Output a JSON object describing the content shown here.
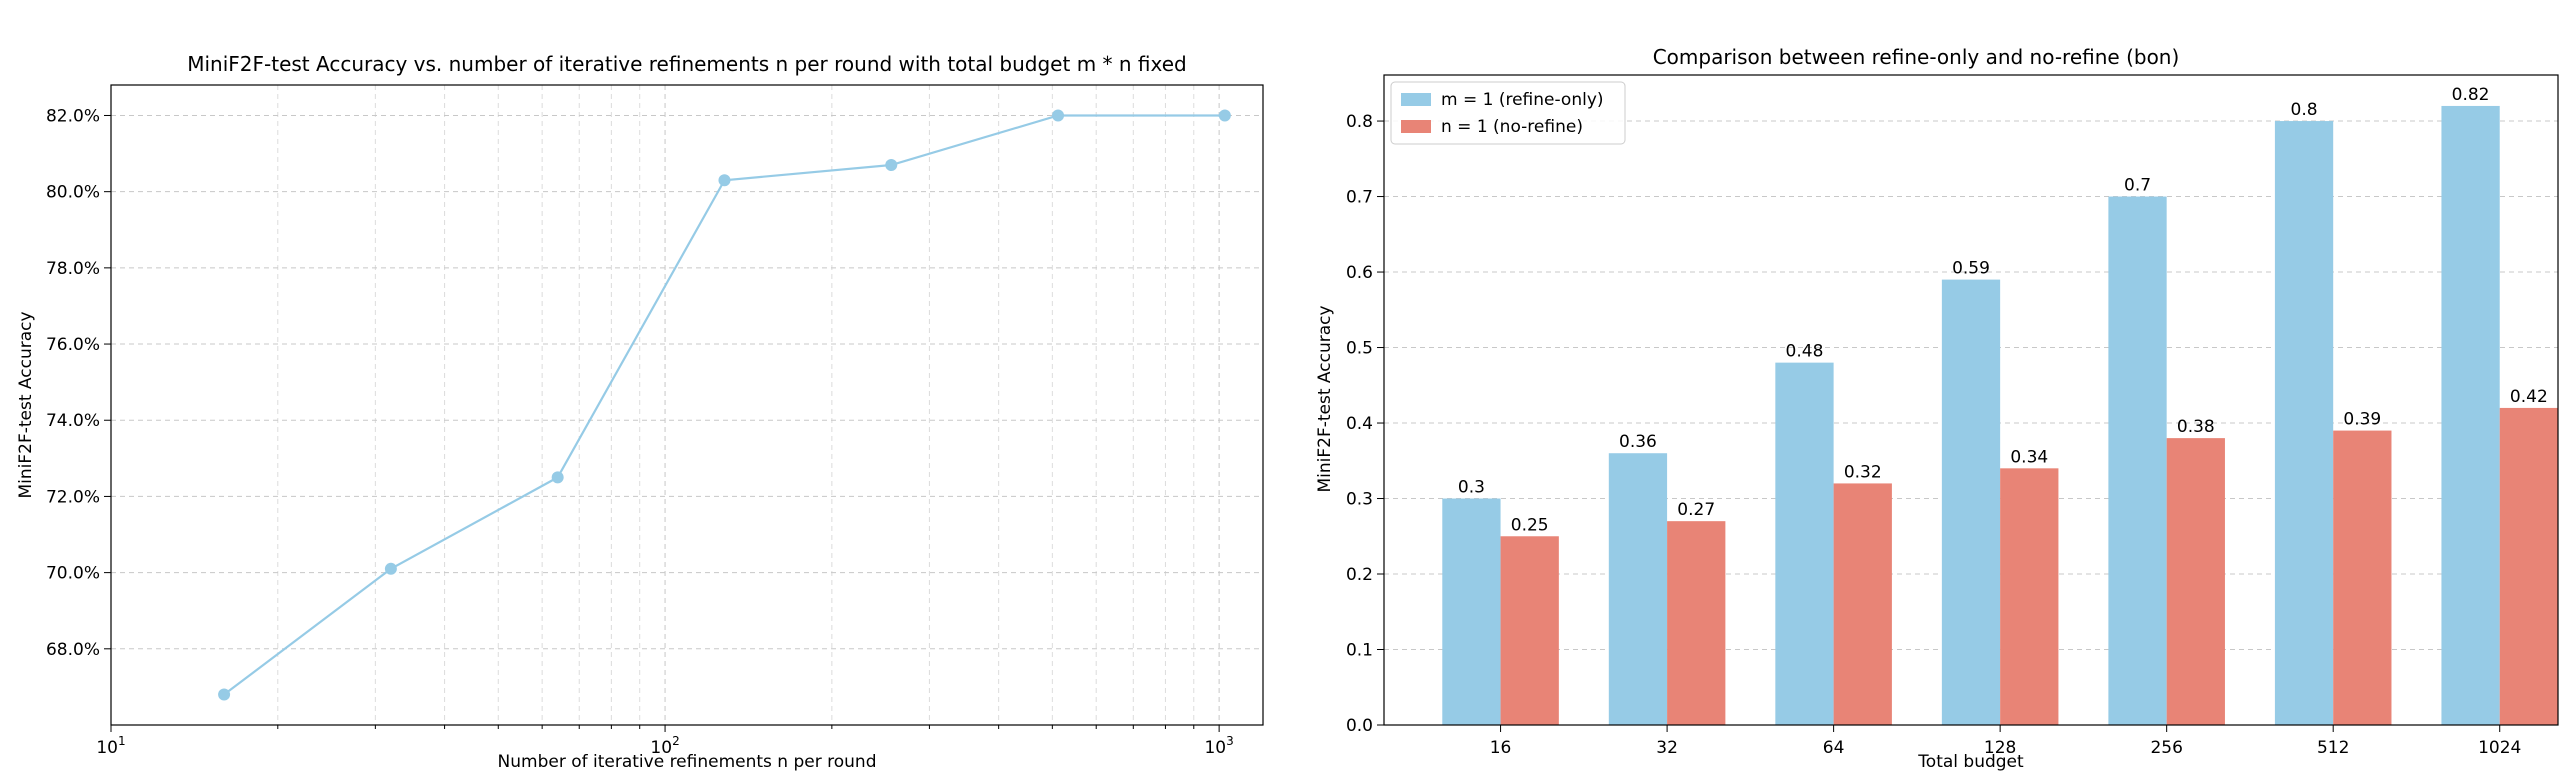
{
  "colors": {
    "blue": "#96cbe6",
    "red": "#e88476",
    "grid": "#c8c8c8",
    "minor_grid": "#dcdcdc"
  },
  "chart_data": [
    {
      "type": "line",
      "title": "MiniF2F-test Accuracy vs. number of iterative refinements n per round with total budget m * n fixed",
      "xlabel": "Number of iterative refinements n per round",
      "ylabel": "MiniF2F-test Accuracy",
      "xscale": "log",
      "xlim": [
        10,
        1200
      ],
      "ylim": [
        66.0,
        82.8
      ],
      "x": [
        16,
        32,
        64,
        128,
        256,
        512,
        1024
      ],
      "y": [
        66.8,
        70.1,
        72.5,
        80.3,
        80.7,
        82.0,
        82.0
      ],
      "yticks": [
        68,
        70,
        72,
        74,
        76,
        78,
        80,
        82
      ],
      "ytick_labels": [
        "68.0%",
        "70.0%",
        "72.0%",
        "74.0%",
        "76.0%",
        "78.0%",
        "80.0%",
        "82.0%"
      ],
      "xticks": [
        10,
        100,
        1000
      ],
      "xtick_bases": [
        "10",
        "10",
        "10"
      ],
      "xtick_exps": [
        "1",
        "2",
        "3"
      ],
      "grid": true
    },
    {
      "type": "bar",
      "title": "Comparison between refine-only and no-refine (bon)",
      "xlabel": "Total budget",
      "ylabel": "MiniF2F-test Accuracy",
      "categories": [
        "16",
        "32",
        "64",
        "128",
        "256",
        "512",
        "1024"
      ],
      "series": [
        {
          "name": "m = 1 (refine-only)",
          "values": [
            0.3,
            0.36,
            0.48,
            0.59,
            0.7,
            0.8,
            0.82
          ],
          "labels": [
            "0.3",
            "0.36",
            "0.48",
            "0.59",
            "0.7",
            "0.8",
            "0.82"
          ]
        },
        {
          "name": "n = 1 (no-refine)",
          "values": [
            0.25,
            0.27,
            0.32,
            0.34,
            0.38,
            0.39,
            0.42
          ],
          "labels": [
            "0.25",
            "0.27",
            "0.32",
            "0.34",
            "0.38",
            "0.39",
            "0.42"
          ]
        }
      ],
      "ylim": [
        0,
        0.861
      ],
      "yticks": [
        0,
        0.1,
        0.2,
        0.3,
        0.4,
        0.5,
        0.6,
        0.7,
        0.8
      ],
      "ytick_labels": [
        "0.0",
        "0.1",
        "0.2",
        "0.3",
        "0.4",
        "0.5",
        "0.6",
        "0.7",
        "0.8"
      ],
      "legend": "top-left",
      "grid": true
    }
  ]
}
